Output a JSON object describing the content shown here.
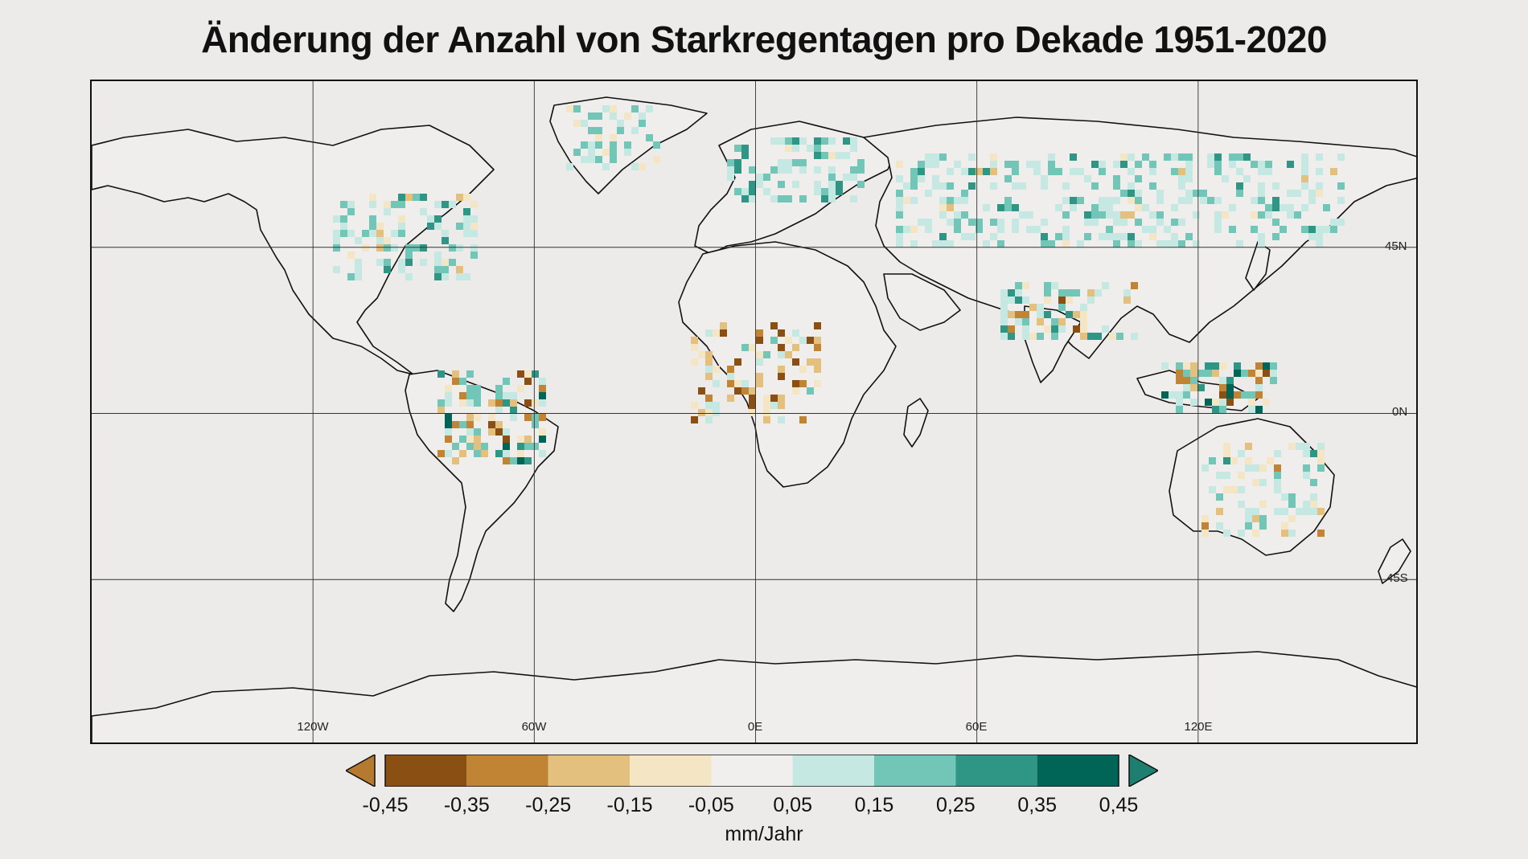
{
  "title": "Änderung der Anzahl von Starkregentagen pro Dekade 1951-2020",
  "map": {
    "projection": "equirectangular",
    "lon_range": [
      -180,
      180
    ],
    "lat_range": [
      -90,
      90
    ],
    "lon_labels": [
      "120W",
      "60W",
      "0E",
      "60E",
      "120E"
    ],
    "lat_labels": [
      "45N",
      "0N",
      "45S"
    ],
    "background_color": "#ecebe9",
    "coastline_color": "#111111"
  },
  "legend": {
    "unit": "mm/Jahr",
    "ticks": [
      "-0,45",
      "-0,35",
      "-0,25",
      "-0,15",
      "-0,05",
      "0,05",
      "0,15",
      "0,25",
      "0,35",
      "0,45"
    ],
    "bins": [
      {
        "color": "#8a4f12"
      },
      {
        "color": "#c08434"
      },
      {
        "color": "#e3c07e"
      },
      {
        "color": "#f4e6c4"
      },
      {
        "color": "#f0efed"
      },
      {
        "color": "#c6e8e3"
      },
      {
        "color": "#72c6b8"
      },
      {
        "color": "#2f9686"
      },
      {
        "color": "#006457"
      }
    ],
    "under_color": "#b5792f",
    "over_color": "#1e7e70"
  }
}
